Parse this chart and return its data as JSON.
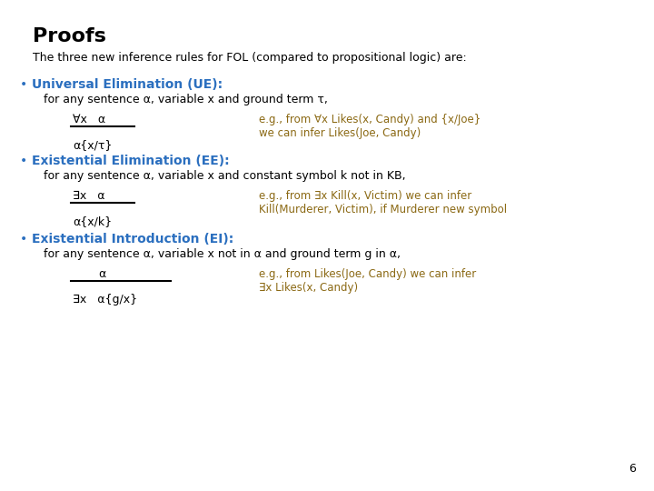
{
  "title": "Proofs",
  "subtitle": "The three new inference rules for FOL (compared to propositional logic) are:",
  "background_color": "#ffffff",
  "title_color": "#000000",
  "subtitle_color": "#000000",
  "black_color": "#000000",
  "blue_color": "#2B6FBF",
  "brown_color": "#8B6914",
  "page_number": "6",
  "bullet1_heading": "Universal Elimination (UE):",
  "bullet1_desc1": "for any sentence ",
  "bullet1_desc_alpha": "α",
  "bullet1_desc2": ", variable x and ground term ",
  "bullet1_desc_tau": "τ",
  "bullet1_desc3": ",",
  "bullet1_num": "∀x   α",
  "bullet1_den": "α{x/τ}",
  "bullet1_eg1": "e.g., from ∀x Likes(x, Candy) and {x/Joe}",
  "bullet1_eg2": "we can infer Likes(Joe, Candy)",
  "bullet2_heading": "Existential Elimination (EE):",
  "bullet2_desc1": "for any sentence ",
  "bullet2_desc_alpha": "α",
  "bullet2_desc2": ", variable x and constant symbol k not in KB,",
  "bullet2_num": "∃x   α",
  "bullet2_den": "α{x/k}",
  "bullet2_eg1": "e.g., from ∃x Kill(x, Victim) we can infer",
  "bullet2_eg2": "Kill(Murderer, Victim), if Murderer new symbol",
  "bullet3_heading": "Existential Introduction (EI):",
  "bullet3_desc1": "for any sentence ",
  "bullet3_desc_alpha1": "α",
  "bullet3_desc2": ", variable x not in ",
  "bullet3_desc_alpha2": "α",
  "bullet3_desc3": " and ground term g in ",
  "bullet3_desc_alpha3": "α",
  "bullet3_desc4": ",",
  "bullet3_num": "α",
  "bullet3_den": "∃x   α{g/x}",
  "bullet3_eg1": "e.g., from Likes(Joe, Candy) we can infer",
  "bullet3_eg2": "∃x Likes(x, Candy)"
}
